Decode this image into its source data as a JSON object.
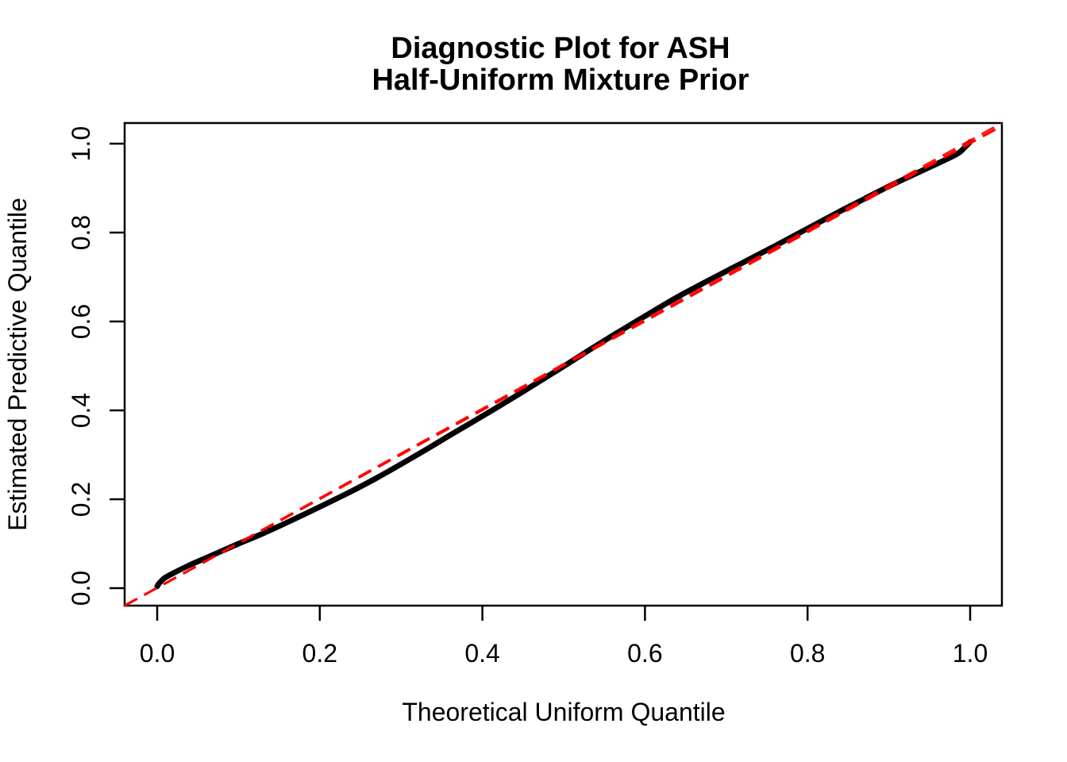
{
  "chart_data": {
    "type": "line",
    "title": "Diagnostic Plot for ASH\nHalf-Uniform Mixture Prior",
    "title_lines": [
      "Diagnostic Plot for ASH",
      "Half-Uniform Mixture Prior"
    ],
    "xlabel": "Theoretical Uniform Quantile",
    "ylabel": "Estimated Predictive Quantile",
    "xlim": [
      -0.04,
      1.04
    ],
    "ylim": [
      -0.04,
      1.04
    ],
    "x_ticks": [
      0.0,
      0.2,
      0.4,
      0.6,
      0.8,
      1.0
    ],
    "x_tick_labels": [
      "0.0",
      "0.2",
      "0.4",
      "0.6",
      "0.8",
      "1.0"
    ],
    "y_ticks": [
      0.0,
      0.2,
      0.4,
      0.6,
      0.8,
      1.0
    ],
    "y_tick_labels": [
      "0.0",
      "0.2",
      "0.4",
      "0.6",
      "0.8",
      "1.0"
    ],
    "grid": false,
    "legend": null,
    "series": [
      {
        "name": "estimated-vs-theoretical-quantiles",
        "type": "thick-point-curve",
        "color": "#000000",
        "points": [
          [
            0.0,
            0.004
          ],
          [
            0.002,
            0.01
          ],
          [
            0.005,
            0.016
          ],
          [
            0.01,
            0.024
          ],
          [
            0.02,
            0.034
          ],
          [
            0.04,
            0.052
          ],
          [
            0.06,
            0.068
          ],
          [
            0.08,
            0.084
          ],
          [
            0.1,
            0.1
          ],
          [
            0.13,
            0.123
          ],
          [
            0.16,
            0.148
          ],
          [
            0.2,
            0.183
          ],
          [
            0.24,
            0.219
          ],
          [
            0.27,
            0.248
          ],
          [
            0.3,
            0.279
          ],
          [
            0.33,
            0.311
          ],
          [
            0.36,
            0.344
          ],
          [
            0.4,
            0.387
          ],
          [
            0.44,
            0.431
          ],
          [
            0.47,
            0.465
          ],
          [
            0.5,
            0.499
          ],
          [
            0.53,
            0.534
          ],
          [
            0.56,
            0.568
          ],
          [
            0.6,
            0.612
          ],
          [
            0.64,
            0.655
          ],
          [
            0.68,
            0.694
          ],
          [
            0.72,
            0.732
          ],
          [
            0.76,
            0.77
          ],
          [
            0.8,
            0.809
          ],
          [
            0.84,
            0.848
          ],
          [
            0.87,
            0.876
          ],
          [
            0.9,
            0.904
          ],
          [
            0.93,
            0.93
          ],
          [
            0.95,
            0.947
          ],
          [
            0.97,
            0.964
          ],
          [
            0.985,
            0.978
          ],
          [
            0.993,
            0.991
          ],
          [
            1.0,
            1.004
          ]
        ]
      },
      {
        "name": "reference-identity-line",
        "type": "dashed-line",
        "color": "#FF0000",
        "from": [
          -0.04,
          -0.04
        ],
        "to": [
          1.04,
          1.04
        ]
      }
    ]
  },
  "colors": {
    "curve": "#000000",
    "reference": "#FF0000",
    "axis": "#000000",
    "background": "#FFFFFF"
  }
}
